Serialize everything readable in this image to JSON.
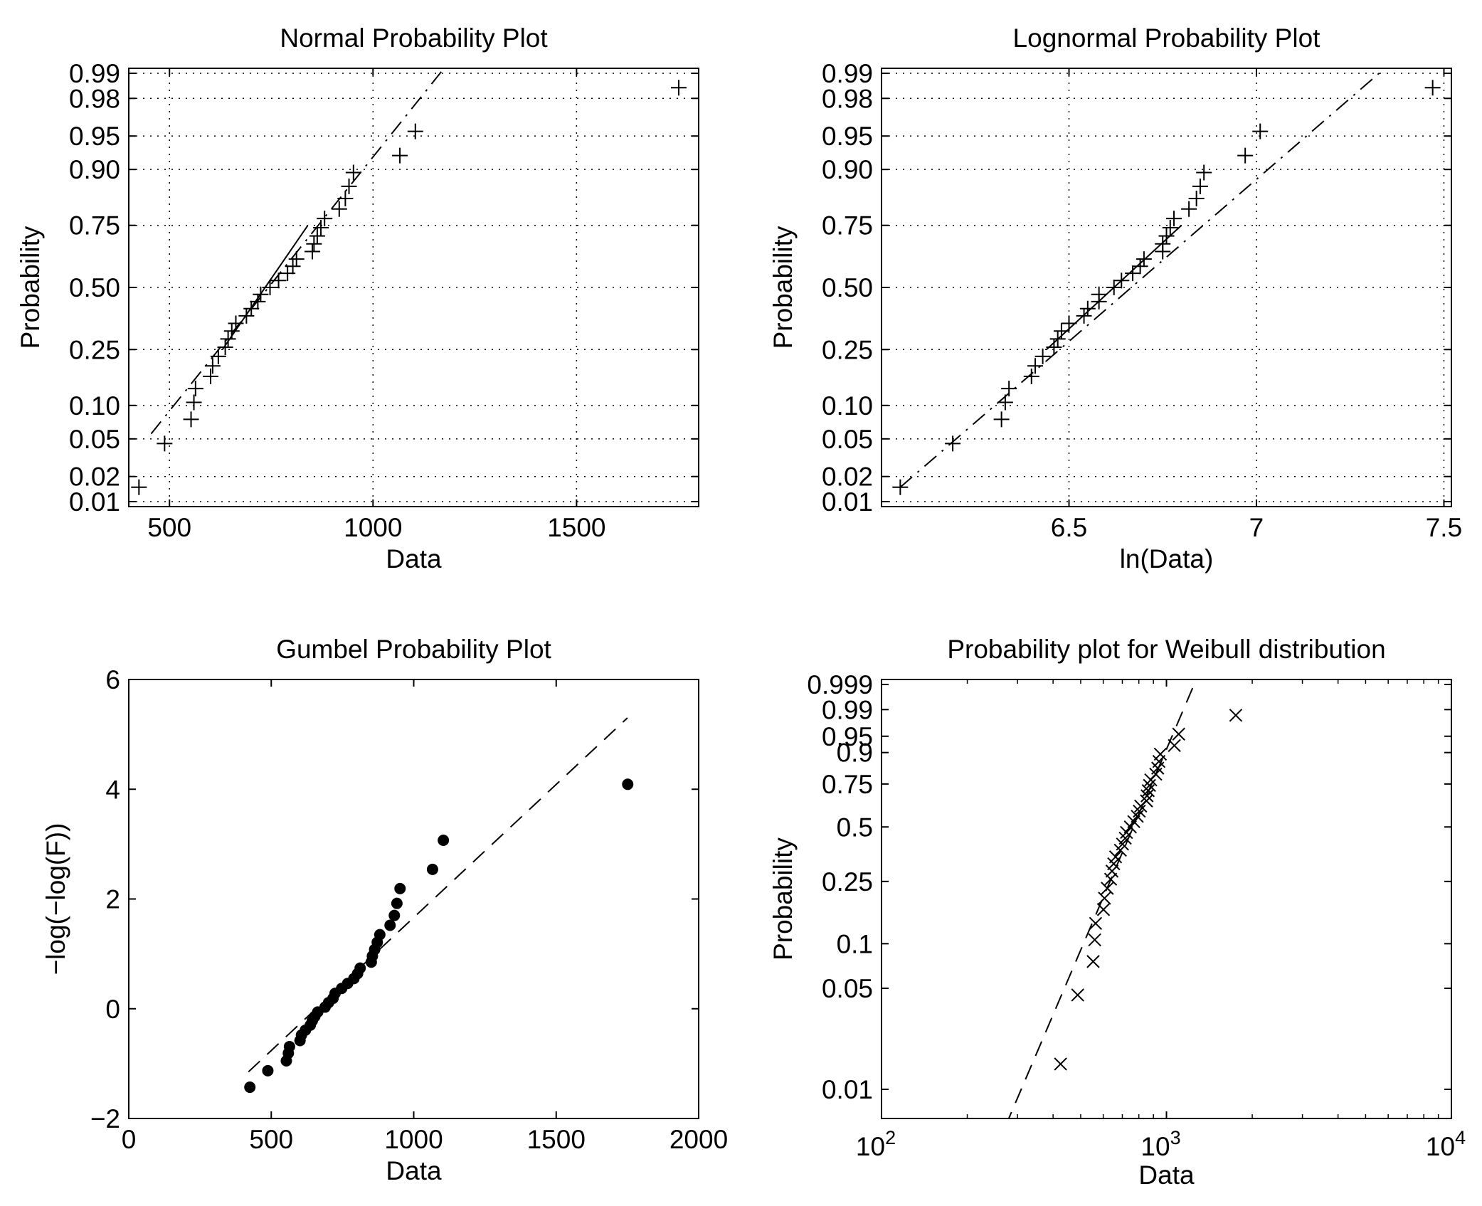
{
  "chart_data": [
    {
      "id": "normal",
      "type": "scatter",
      "title": "Normal Probability Plot",
      "xlabel": "Data",
      "ylabel": "Probability",
      "xlim": [
        400,
        1800
      ],
      "xticks": [
        500,
        1000,
        1500
      ],
      "yticks": [
        0.01,
        0.02,
        0.05,
        0.1,
        0.25,
        0.5,
        0.75,
        0.9,
        0.95,
        0.98,
        0.99
      ],
      "ytick_labels": [
        "0.01",
        "0.02",
        "0.05",
        "0.10",
        "0.25",
        "0.50",
        "0.75",
        "0.90",
        "0.95",
        "0.98",
        "0.99"
      ],
      "grid": true,
      "marker": "plus",
      "x": [
        425,
        488,
        553,
        560,
        564,
        601,
        606,
        620,
        637,
        644,
        653,
        663,
        689,
        701,
        717,
        724,
        747,
        768,
        790,
        803,
        812,
        851,
        855,
        863,
        872,
        881,
        917,
        932,
        941,
        952,
        1066,
        1104,
        1751
      ],
      "y": [
        0.015,
        0.045,
        0.076,
        0.106,
        0.136,
        0.167,
        0.197,
        0.227,
        0.258,
        0.288,
        0.318,
        0.348,
        0.379,
        0.409,
        0.439,
        0.47,
        0.5,
        0.53,
        0.561,
        0.591,
        0.621,
        0.652,
        0.682,
        0.712,
        0.742,
        0.773,
        0.803,
        0.833,
        0.864,
        0.894,
        0.924,
        0.955,
        0.985
      ],
      "fit_line": {
        "style": "dash-dot",
        "x": [
          455,
          1210
        ],
        "y": [
          0.056,
          0.995
        ]
      },
      "solid_segment": {
        "x": [
          630,
          840
        ],
        "y": [
          0.25,
          0.75
        ]
      }
    },
    {
      "id": "lognormal",
      "type": "scatter",
      "title": "Lognormal Probability Plot",
      "xlabel": "ln(Data)",
      "ylabel": "Probability",
      "xlim": [
        6.0,
        7.52
      ],
      "xticks": [
        6.5,
        7.0,
        7.5
      ],
      "xtick_labels": [
        "6.5",
        "7",
        "7.5"
      ],
      "yticks": [
        0.01,
        0.02,
        0.05,
        0.1,
        0.25,
        0.5,
        0.75,
        0.9,
        0.95,
        0.98,
        0.99
      ],
      "ytick_labels": [
        "0.01",
        "0.02",
        "0.05",
        "0.10",
        "0.25",
        "0.50",
        "0.75",
        "0.90",
        "0.95",
        "0.98",
        "0.99"
      ],
      "grid": true,
      "marker": "plus",
      "x": [
        6.05,
        6.19,
        6.32,
        6.33,
        6.34,
        6.4,
        6.41,
        6.43,
        6.46,
        6.47,
        6.48,
        6.5,
        6.54,
        6.55,
        6.58,
        6.58,
        6.62,
        6.64,
        6.67,
        6.69,
        6.7,
        6.75,
        6.75,
        6.76,
        6.77,
        6.78,
        6.82,
        6.84,
        6.85,
        6.86,
        6.97,
        7.01,
        7.47
      ],
      "y": [
        0.015,
        0.045,
        0.076,
        0.106,
        0.136,
        0.167,
        0.197,
        0.227,
        0.258,
        0.288,
        0.318,
        0.348,
        0.379,
        0.409,
        0.439,
        0.47,
        0.5,
        0.53,
        0.561,
        0.591,
        0.621,
        0.652,
        0.682,
        0.712,
        0.742,
        0.773,
        0.803,
        0.833,
        0.864,
        0.894,
        0.924,
        0.955,
        0.985
      ],
      "fit_line": {
        "style": "dash-dot",
        "x": [
          6.05,
          7.38
        ],
        "y": [
          0.015,
          0.994
        ]
      },
      "solid_segment": {
        "x": [
          6.44,
          6.8
        ],
        "y": [
          0.25,
          0.75
        ]
      }
    },
    {
      "id": "gumbel",
      "type": "scatter",
      "title": "Gumbel Probability Plot",
      "xlabel": "Data",
      "ylabel": "−log(−log(F))",
      "xlim": [
        0,
        2000
      ],
      "ylim": [
        -2,
        6
      ],
      "xticks": [
        0,
        500,
        1000,
        1500,
        2000
      ],
      "yticks": [
        -2,
        0,
        2,
        4,
        6
      ],
      "ytick_labels": [
        "−2",
        "0",
        "2",
        "4",
        "6"
      ],
      "grid": false,
      "marker": "dot",
      "x": [
        425,
        488,
        553,
        560,
        564,
        601,
        606,
        620,
        637,
        644,
        653,
        663,
        689,
        701,
        717,
        724,
        747,
        768,
        790,
        803,
        812,
        851,
        855,
        863,
        872,
        881,
        917,
        932,
        941,
        952,
        1066,
        1104,
        1751
      ],
      "y": [
        -1.43,
        -1.13,
        -0.95,
        -0.81,
        -0.69,
        -0.58,
        -0.48,
        -0.39,
        -0.3,
        -0.22,
        -0.14,
        -0.06,
        0.03,
        0.11,
        0.19,
        0.28,
        0.37,
        0.46,
        0.55,
        0.64,
        0.74,
        0.85,
        0.96,
        1.08,
        1.21,
        1.35,
        1.52,
        1.7,
        1.92,
        2.19,
        2.54,
        3.07,
        4.09
      ],
      "fit_line": {
        "style": "dashed",
        "x": [
          420,
          1750
        ],
        "y": [
          -1.15,
          5.3
        ]
      }
    },
    {
      "id": "weibull",
      "type": "scatter",
      "title": "Probability plot for Weibull distribution",
      "xlabel": "Data",
      "ylabel": "Probability",
      "xscale": "log",
      "xlim": [
        100,
        10000
      ],
      "xticks": [
        100,
        1000,
        10000
      ],
      "xtick_base": "10",
      "xtick_exponents": [
        "2",
        "3",
        "4"
      ],
      "yticks": [
        0.01,
        0.05,
        0.1,
        0.25,
        0.5,
        0.75,
        0.9,
        0.95,
        0.99,
        0.999
      ],
      "ytick_labels": [
        "0.01",
        "0.05",
        "0.1",
        "0.25",
        "0.5",
        "0.75",
        "0.9",
        "0.95",
        "0.99",
        "0.999"
      ],
      "grid": false,
      "marker": "x",
      "x": [
        425,
        488,
        553,
        560,
        564,
        601,
        606,
        620,
        637,
        644,
        653,
        663,
        689,
        701,
        717,
        724,
        747,
        768,
        790,
        803,
        812,
        851,
        855,
        863,
        872,
        881,
        917,
        932,
        941,
        952,
        1066,
        1104,
        1751
      ],
      "y": [
        0.015,
        0.045,
        0.076,
        0.106,
        0.136,
        0.167,
        0.197,
        0.227,
        0.258,
        0.288,
        0.318,
        0.348,
        0.379,
        0.409,
        0.439,
        0.47,
        0.5,
        0.53,
        0.561,
        0.591,
        0.621,
        0.652,
        0.682,
        0.712,
        0.742,
        0.773,
        0.803,
        0.833,
        0.864,
        0.894,
        0.924,
        0.955,
        0.985
      ],
      "fit_line": {
        "style": "dashed",
        "x": [
          272,
          1330
        ],
        "y": [
          0.0055,
          0.9999
        ]
      }
    }
  ]
}
